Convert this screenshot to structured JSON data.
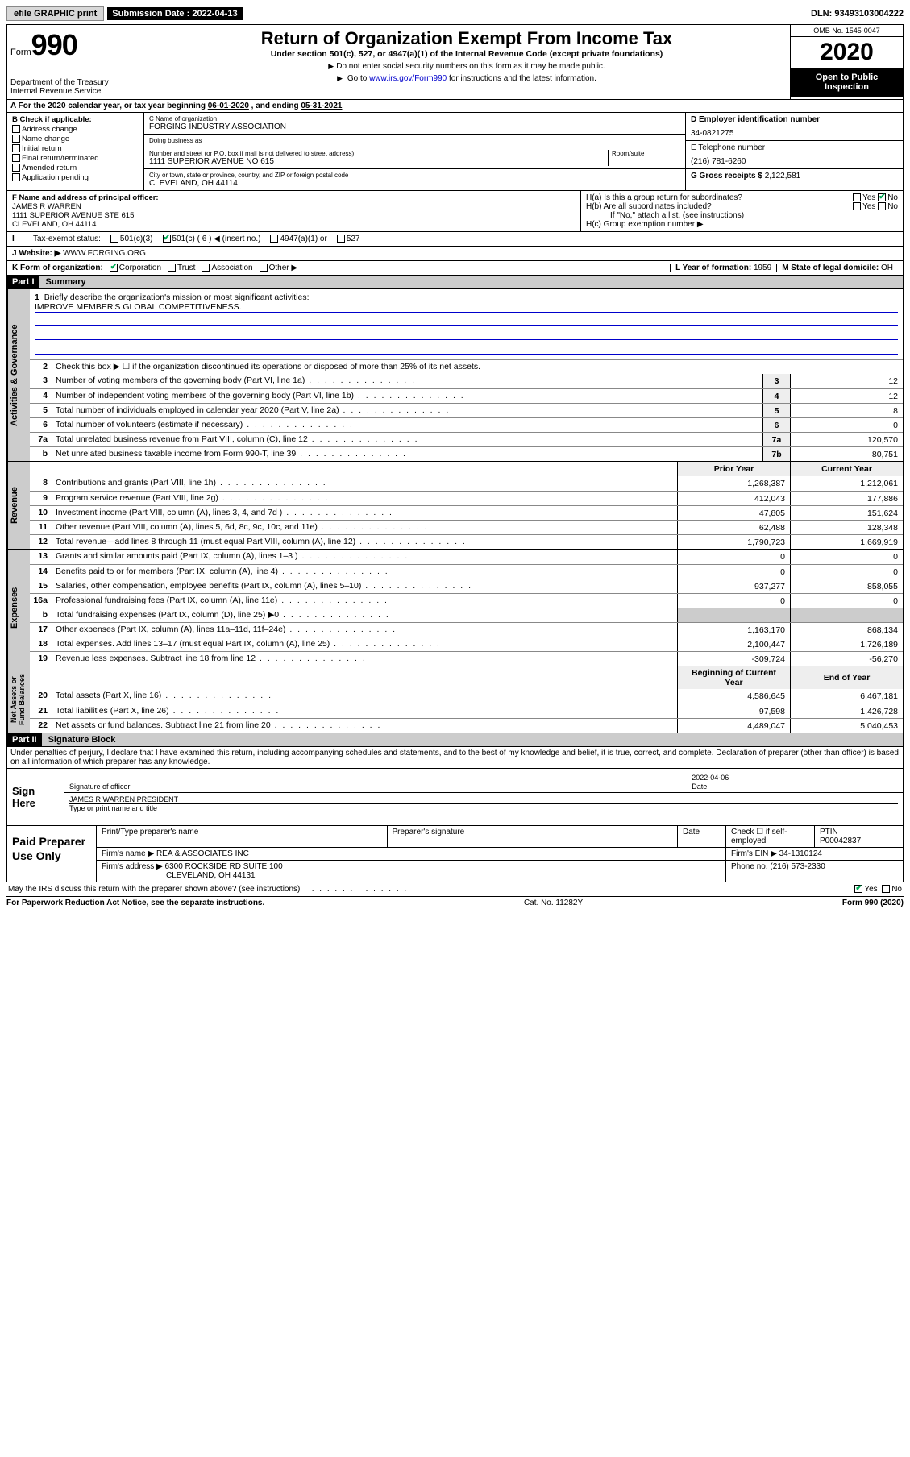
{
  "topbar": {
    "efile": "efile GRAPHIC print",
    "sub_label": "Submission Date :",
    "sub_date": "2022-04-13",
    "dln_label": "DLN:",
    "dln": "93493103004222"
  },
  "header": {
    "form_label": "Form",
    "form_num": "990",
    "dept": "Department of the Treasury\nInternal Revenue Service",
    "title": "Return of Organization Exempt From Income Tax",
    "subtitle": "Under section 501(c), 527, or 4947(a)(1) of the Internal Revenue Code (except private foundations)",
    "instr1": "Do not enter social security numbers on this form as it may be made public.",
    "instr2_pre": "Go to ",
    "instr2_link": "www.irs.gov/Form990",
    "instr2_post": " for instructions and the latest information.",
    "omb": "OMB No. 1545-0047",
    "year": "2020",
    "open": "Open to Public Inspection"
  },
  "lineA": {
    "text_pre": "For the 2020 calendar year, or tax year beginning ",
    "start": "06-01-2020",
    "mid": " , and ending ",
    "end": "05-31-2021"
  },
  "boxB": {
    "label": "B Check if applicable:",
    "items": [
      "Address change",
      "Name change",
      "Initial return",
      "Final return/terminated",
      "Amended return",
      "Application pending"
    ]
  },
  "boxC": {
    "name_label": "C Name of organization",
    "name": "FORGING INDUSTRY ASSOCIATION",
    "dba_label": "Doing business as",
    "dba": "",
    "street_label": "Number and street (or P.O. box if mail is not delivered to street address)",
    "room_label": "Room/suite",
    "street": "1111 SUPERIOR AVENUE NO 615",
    "city_label": "City or town, state or province, country, and ZIP or foreign postal code",
    "city": "CLEVELAND, OH  44114"
  },
  "boxD": {
    "label": "D Employer identification number",
    "value": "34-0821275"
  },
  "boxE": {
    "label": "E Telephone number",
    "value": "(216) 781-6260"
  },
  "boxG": {
    "label": "G Gross receipts $",
    "value": "2,122,581"
  },
  "boxF": {
    "label": "F Name and address of principal officer:",
    "name": "JAMES R WARREN",
    "addr1": "1111 SUPERIOR AVENUE STE 615",
    "addr2": "CLEVELAND, OH  44114"
  },
  "boxH": {
    "a": "H(a)  Is this a group return for subordinates?",
    "b": "H(b)  Are all subordinates included?",
    "b_note": "If \"No,\" attach a list. (see instructions)",
    "c": "H(c)  Group exemption number ▶",
    "ha_no_checked": true
  },
  "boxI": {
    "label": "Tax-exempt status:",
    "opts": [
      "501(c)(3)",
      "501(c) ( 6 ) ◀ (insert no.)",
      "4947(a)(1) or",
      "527"
    ],
    "checked_index": 1
  },
  "boxJ": {
    "label": "J  Website: ▶",
    "value": "WWW.FORGING.ORG"
  },
  "boxK": {
    "label": "K Form of organization:",
    "opts": [
      "Corporation",
      "Trust",
      "Association",
      "Other ▶"
    ],
    "checked_index": 0
  },
  "boxL": {
    "label": "L Year of formation:",
    "value": "1959"
  },
  "boxM": {
    "label": "M State of legal domicile:",
    "value": "OH"
  },
  "part1": {
    "tag": "Part I",
    "title": "Summary"
  },
  "summary": {
    "l1_label": "Briefly describe the organization's mission or most significant activities:",
    "l1_value": "IMPROVE MEMBER'S GLOBAL COMPETITIVENESS.",
    "l2": "Check this box ▶ ☐  if the organization discontinued its operations or disposed of more than 25% of its net assets.",
    "lines_single": [
      {
        "n": "3",
        "d": "Number of voting members of the governing body (Part VI, line 1a)",
        "cn": "3",
        "v": "12"
      },
      {
        "n": "4",
        "d": "Number of independent voting members of the governing body (Part VI, line 1b)",
        "cn": "4",
        "v": "12"
      },
      {
        "n": "5",
        "d": "Total number of individuals employed in calendar year 2020 (Part V, line 2a)",
        "cn": "5",
        "v": "8"
      },
      {
        "n": "6",
        "d": "Total number of volunteers (estimate if necessary)",
        "cn": "6",
        "v": "0"
      },
      {
        "n": "7a",
        "d": "Total unrelated business revenue from Part VIII, column (C), line 12",
        "cn": "7a",
        "v": "120,570"
      },
      {
        "n": "b",
        "d": "Net unrelated business taxable income from Form 990-T, line 39",
        "cn": "7b",
        "v": "80,751"
      }
    ],
    "col_headers": {
      "prior": "Prior Year",
      "current": "Current Year",
      "begin": "Beginning of Current Year",
      "end": "End of Year"
    },
    "revenue": [
      {
        "n": "8",
        "d": "Contributions and grants (Part VIII, line 1h)",
        "p": "1,268,387",
        "c": "1,212,061"
      },
      {
        "n": "9",
        "d": "Program service revenue (Part VIII, line 2g)",
        "p": "412,043",
        "c": "177,886"
      },
      {
        "n": "10",
        "d": "Investment income (Part VIII, column (A), lines 3, 4, and 7d )",
        "p": "47,805",
        "c": "151,624"
      },
      {
        "n": "11",
        "d": "Other revenue (Part VIII, column (A), lines 5, 6d, 8c, 9c, 10c, and 11e)",
        "p": "62,488",
        "c": "128,348"
      },
      {
        "n": "12",
        "d": "Total revenue—add lines 8 through 11 (must equal Part VIII, column (A), line 12)",
        "p": "1,790,723",
        "c": "1,669,919"
      }
    ],
    "expenses": [
      {
        "n": "13",
        "d": "Grants and similar amounts paid (Part IX, column (A), lines 1–3 )",
        "p": "0",
        "c": "0"
      },
      {
        "n": "14",
        "d": "Benefits paid to or for members (Part IX, column (A), line 4)",
        "p": "0",
        "c": "0"
      },
      {
        "n": "15",
        "d": "Salaries, other compensation, employee benefits (Part IX, column (A), lines 5–10)",
        "p": "937,277",
        "c": "858,055"
      },
      {
        "n": "16a",
        "d": "Professional fundraising fees (Part IX, column (A), line 11e)",
        "p": "0",
        "c": "0"
      },
      {
        "n": "b",
        "d": "Total fundraising expenses (Part IX, column (D), line 25) ▶0",
        "p": "",
        "c": "",
        "shaded": true
      },
      {
        "n": "17",
        "d": "Other expenses (Part IX, column (A), lines 11a–11d, 11f–24e)",
        "p": "1,163,170",
        "c": "868,134"
      },
      {
        "n": "18",
        "d": "Total expenses. Add lines 13–17 (must equal Part IX, column (A), line 25)",
        "p": "2,100,447",
        "c": "1,726,189"
      },
      {
        "n": "19",
        "d": "Revenue less expenses. Subtract line 18 from line 12",
        "p": "-309,724",
        "c": "-56,270"
      }
    ],
    "netassets": [
      {
        "n": "20",
        "d": "Total assets (Part X, line 16)",
        "p": "4,586,645",
        "c": "6,467,181"
      },
      {
        "n": "21",
        "d": "Total liabilities (Part X, line 26)",
        "p": "97,598",
        "c": "1,426,728"
      },
      {
        "n": "22",
        "d": "Net assets or fund balances. Subtract line 21 from line 20",
        "p": "4,489,047",
        "c": "5,040,453"
      }
    ],
    "side_labels": {
      "gov": "Activities & Governance",
      "rev": "Revenue",
      "exp": "Expenses",
      "net": "Net Assets or\nFund Balances"
    }
  },
  "part2": {
    "tag": "Part II",
    "title": "Signature Block"
  },
  "penalty": "Under penalties of perjury, I declare that I have examined this return, including accompanying schedules and statements, and to the best of my knowledge and belief, it is true, correct, and complete. Declaration of preparer (other than officer) is based on all information of which preparer has any knowledge.",
  "sign": {
    "left": "Sign Here",
    "sig_of_officer": "Signature of officer",
    "date_label": "Date",
    "date": "2022-04-06",
    "name_title": "JAMES R WARREN  PRESIDENT",
    "type_label": "Type or print name and title"
  },
  "prep": {
    "left": "Paid Preparer Use Only",
    "h1": "Print/Type preparer's name",
    "h2": "Preparer's signature",
    "h3": "Date",
    "h4": "Check ☐ if self-employed",
    "h5": "PTIN",
    "ptin": "P00042837",
    "firm_label": "Firm's name  ▶",
    "firm": "REA & ASSOCIATES INC",
    "ein_label": "Firm's EIN ▶",
    "ein": "34-1310124",
    "addr_label": "Firm's address ▶",
    "addr": "6300 ROCKSIDE RD SUITE 100",
    "addr2": "CLEVELAND, OH  44131",
    "phone_label": "Phone no.",
    "phone": "(216) 573-2330"
  },
  "discuss": {
    "q": "May the IRS discuss this return with the preparer shown above? (see instructions)",
    "yes_checked": true
  },
  "paperwork": {
    "l": "For Paperwork Reduction Act Notice, see the separate instructions.",
    "m": "Cat. No. 11282Y",
    "r": "Form 990 (2020)"
  }
}
